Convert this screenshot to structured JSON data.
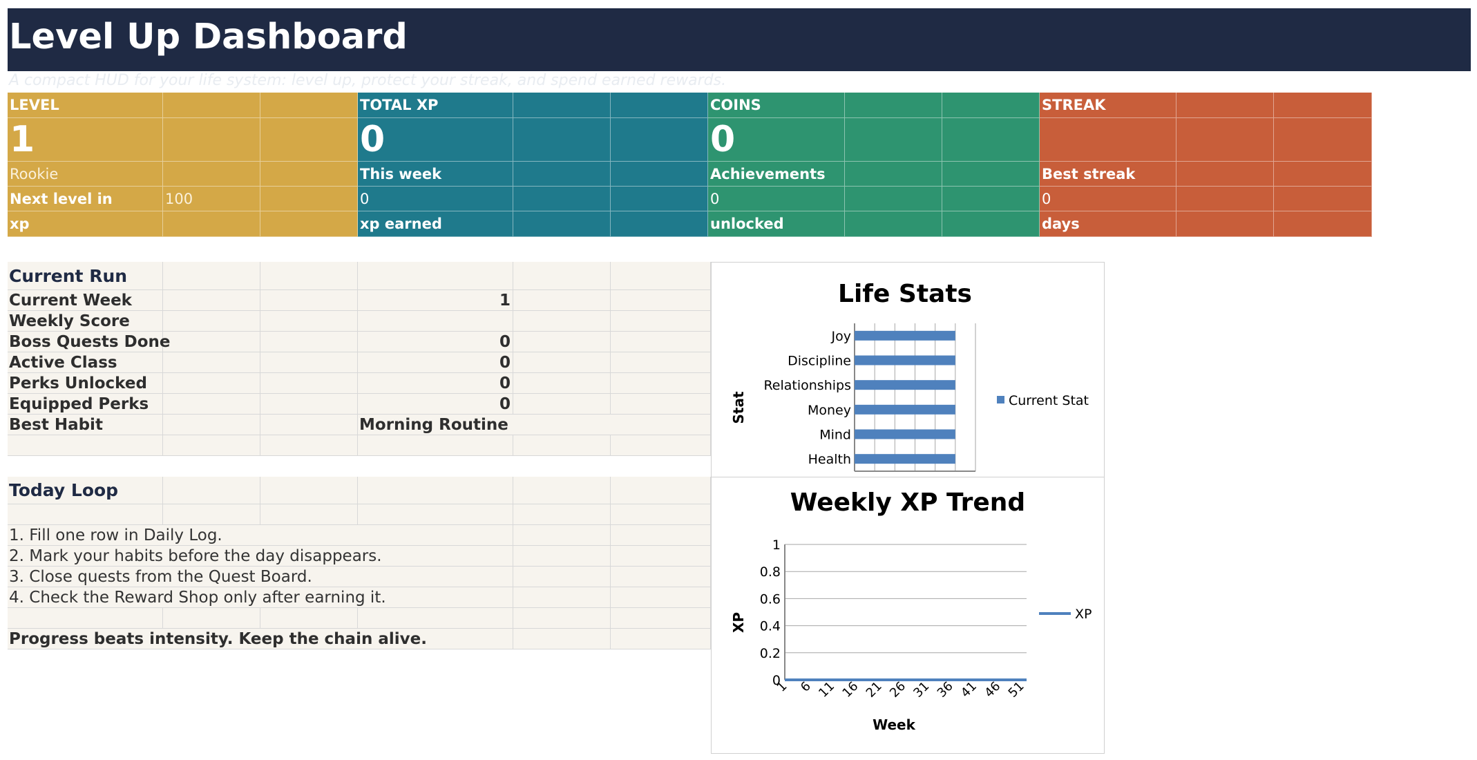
{
  "header": {
    "title": "Level Up Dashboard",
    "subtitle": "A compact HUD for your life system: level up, protect your streak, and spend earned rewards."
  },
  "kpis": {
    "level": {
      "label": "LEVEL",
      "value": "1",
      "rank": "Rookie",
      "detail_label": "Next level in",
      "detail_value": "100",
      "unit": "xp"
    },
    "total_xp": {
      "label": "TOTAL XP",
      "value": "0",
      "sub_label": "This week",
      "sub_value": "0",
      "unit": "xp earned"
    },
    "coins": {
      "label": "COINS",
      "value": "0",
      "sub_label": "Achievements",
      "sub_value": "0",
      "unit": "unlocked"
    },
    "streak": {
      "label": "STREAK",
      "value": "",
      "sub_label": "Best streak",
      "sub_value": "0",
      "unit": "days"
    }
  },
  "current_run": {
    "heading": "Current Run",
    "rows": [
      {
        "label": "Current Week",
        "value": "1"
      },
      {
        "label": "Weekly Score",
        "value": ""
      },
      {
        "label": "Boss Quests Done",
        "value": "0"
      },
      {
        "label": "Active Class",
        "value": "0"
      },
      {
        "label": "Perks Unlocked",
        "value": "0"
      },
      {
        "label": "Equipped Perks",
        "value": "0"
      },
      {
        "label": "Best Habit",
        "value": "Morning Routine"
      }
    ]
  },
  "today_loop": {
    "heading": "Today Loop",
    "steps": [
      "1. Fill one row in Daily Log.",
      "2. Mark your habits before the day disappears.",
      "3. Close quests from the Quest Board.",
      "4. Check the Reward Shop only after earning it."
    ],
    "motto": "Progress beats intensity. Keep the chain alive."
  },
  "chart_data": [
    {
      "type": "bar",
      "orientation": "horizontal",
      "title": "Life Stats",
      "ylabel": "Stat",
      "xlabel": "",
      "categories": [
        "Health",
        "Mind",
        "Money",
        "Relationships",
        "Discipline",
        "Joy"
      ],
      "series": [
        {
          "name": "Current Stat",
          "values": [
            5,
            5,
            5,
            5,
            5,
            5
          ],
          "color": "#4f81bd"
        }
      ],
      "xlim": [
        0,
        6
      ],
      "grid": true,
      "legend": "right"
    },
    {
      "type": "line",
      "title": "Weekly XP Trend",
      "xlabel": "Week",
      "ylabel": "XP",
      "x_tick_labels": [
        "1",
        "6",
        "11",
        "16",
        "21",
        "26",
        "31",
        "36",
        "41",
        "46",
        "51"
      ],
      "y_tick_labels": [
        "0",
        "0.2",
        "0.4",
        "0.6",
        "0.8",
        "1"
      ],
      "ylim": [
        0,
        1
      ],
      "xlim": [
        1,
        52
      ],
      "series": [
        {
          "name": "XP",
          "color": "#4f81bd",
          "x_start": 1,
          "x_end": 52,
          "constant_value": 0
        }
      ],
      "grid": true,
      "legend": "right"
    }
  ],
  "colors": {
    "header_bg": "#1f2a44",
    "level": "#d4a847",
    "total_xp": "#1f7a8c",
    "coins": "#2e9470",
    "streak": "#c85e3a",
    "panel_bg": "#f7f4ee",
    "series": "#4f81bd"
  }
}
